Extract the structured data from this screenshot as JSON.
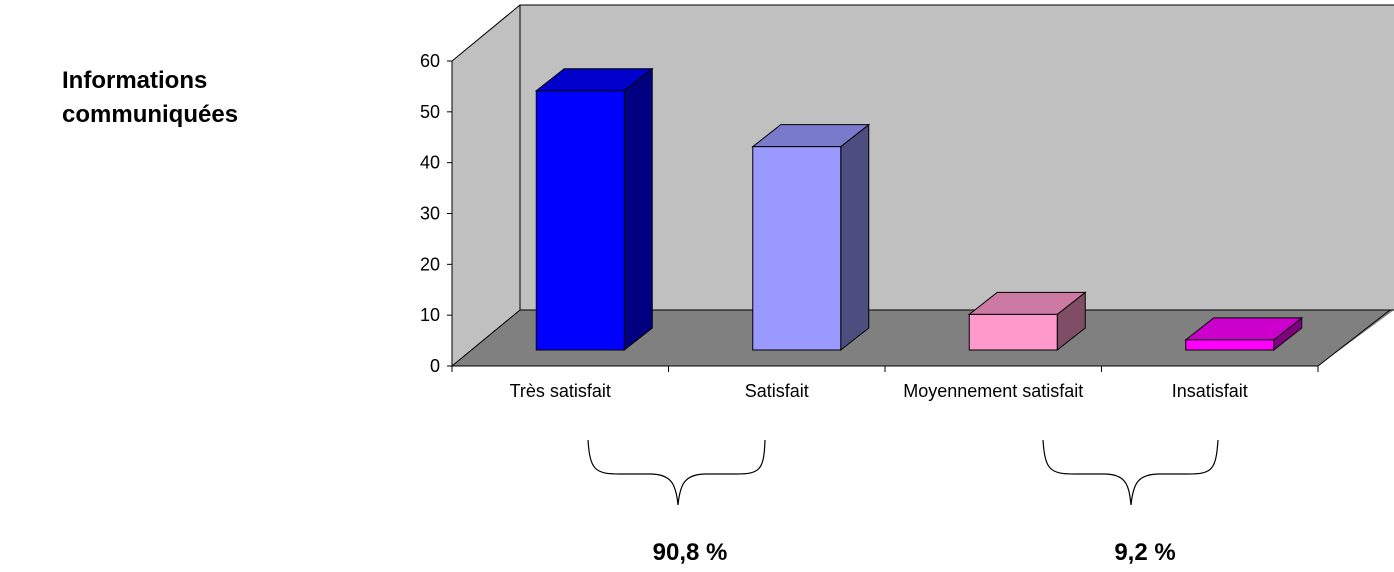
{
  "chart_data": {
    "type": "bar3d",
    "title": "Informations communiquées",
    "categories": [
      "Très satisfait",
      "Satisfait",
      "Moyennement satisfait",
      "Insatisfait"
    ],
    "values": [
      51,
      40,
      7,
      2
    ],
    "colors": [
      "#0000ff",
      "#9999ff",
      "#ff99cc",
      "#ff00ff"
    ],
    "ylim": [
      0,
      60
    ],
    "yticks": [
      0,
      10,
      20,
      30,
      40,
      50,
      60
    ],
    "annotations": [
      "90,8 %",
      "9,2 %"
    ]
  }
}
